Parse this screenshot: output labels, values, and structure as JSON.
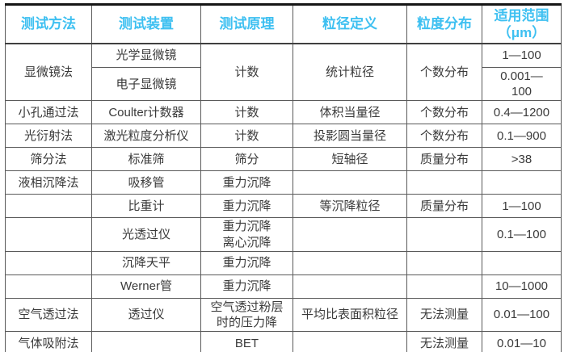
{
  "colors": {
    "header_text": "#3ec0f1",
    "body_text": "#3a3a3a",
    "grid_line": "#5a5a5a",
    "frame_line": "#161616",
    "background": "#ffffff"
  },
  "table": {
    "headers": [
      {
        "label": "测试方法"
      },
      {
        "label": "测试装置"
      },
      {
        "label": "测试原理"
      },
      {
        "label": "粒径定义"
      },
      {
        "label": "粒度分布"
      },
      {
        "label": "适用范围\n（μm）"
      }
    ],
    "rows": [
      {
        "cells": [
          {
            "text": "显微镜法",
            "rowspan": 2
          },
          {
            "text": "光学显微镜"
          },
          {
            "text": "计数",
            "rowspan": 2
          },
          {
            "text": "统计粒径",
            "rowspan": 2
          },
          {
            "text": "个数分布",
            "rowspan": 2
          },
          {
            "text": "1—100"
          }
        ]
      },
      {
        "cells": [
          {
            "text": "电子显微镜"
          },
          {
            "text": "0.001—\n100"
          }
        ]
      },
      {
        "cells": [
          {
            "text": "小孔通过法"
          },
          {
            "text": "Coulter计数器"
          },
          {
            "text": "计数"
          },
          {
            "text": "体积当量径"
          },
          {
            "text": "个数分布"
          },
          {
            "text": "0.4—1200"
          }
        ]
      },
      {
        "cells": [
          {
            "text": "光衍射法"
          },
          {
            "text": "激光粒度分析仪"
          },
          {
            "text": "计数"
          },
          {
            "text": "投影圆当量径"
          },
          {
            "text": "个数分布"
          },
          {
            "text": "0.1—900"
          }
        ]
      },
      {
        "cells": [
          {
            "text": "筛分法"
          },
          {
            "text": "标准筛"
          },
          {
            "text": "筛分"
          },
          {
            "text": "短轴径"
          },
          {
            "text": "质量分布"
          },
          {
            "text": ">38"
          }
        ]
      },
      {
        "cells": [
          {
            "text": "液相沉降法"
          },
          {
            "text": "吸移管"
          },
          {
            "text": "重力沉降"
          },
          {
            "text": ""
          },
          {
            "text": ""
          },
          {
            "text": ""
          }
        ]
      },
      {
        "cells": [
          {
            "text": ""
          },
          {
            "text": "比重计"
          },
          {
            "text": "重力沉降"
          },
          {
            "text": "等沉降粒径"
          },
          {
            "text": "质量分布"
          },
          {
            "text": "1—100"
          }
        ]
      },
      {
        "cells": [
          {
            "text": ""
          },
          {
            "text": "光透过仪"
          },
          {
            "text": "重力沉降\n离心沉降"
          },
          {
            "text": ""
          },
          {
            "text": ""
          },
          {
            "text": "0.1—100"
          }
        ]
      },
      {
        "cells": [
          {
            "text": ""
          },
          {
            "text": "沉降天平"
          },
          {
            "text": "重力沉降"
          },
          {
            "text": ""
          },
          {
            "text": ""
          },
          {
            "text": ""
          }
        ]
      },
      {
        "cells": [
          {
            "text": ""
          },
          {
            "text": "Werner管"
          },
          {
            "text": "重力沉降"
          },
          {
            "text": ""
          },
          {
            "text": ""
          },
          {
            "text": "10—1000"
          }
        ]
      },
      {
        "cells": [
          {
            "text": "空气透过法"
          },
          {
            "text": "透过仪"
          },
          {
            "text": "空气透过粉层\n时的压力降"
          },
          {
            "text": "平均比表面积粒径"
          },
          {
            "text": "无法测量"
          },
          {
            "text": "0.01—100"
          }
        ]
      },
      {
        "cells": [
          {
            "text": "气体吸附法"
          },
          {
            "text": ""
          },
          {
            "text": "BET"
          },
          {
            "text": ""
          },
          {
            "text": "无法测量"
          },
          {
            "text": "0.01—10"
          }
        ]
      }
    ]
  }
}
